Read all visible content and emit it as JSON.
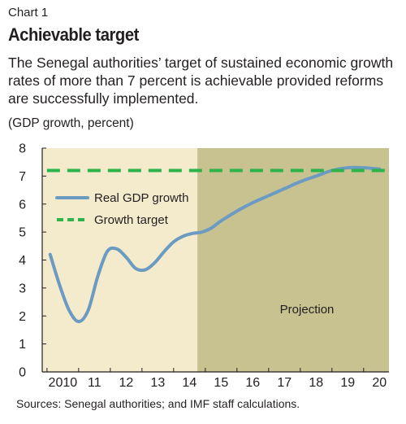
{
  "chart_data": {
    "type": "line",
    "label": "Chart 1",
    "title": "Achievable target",
    "subtitle": "The Senegal authorities’ target of sustained economic growth rates of more than 7 percent is achievable provided reforms are successfully implemented.",
    "units": "(GDP growth, percent)",
    "xlabel": "",
    "ylabel": "",
    "x_ticks": [
      "2010",
      "11",
      "12",
      "13",
      "14",
      "15",
      "16",
      "17",
      "18",
      "19",
      "20"
    ],
    "x_range": [
      2009.35,
      2020.3
    ],
    "y_ticks": [
      "0",
      "1",
      "2",
      "3",
      "4",
      "5",
      "6",
      "7",
      "8"
    ],
    "ylim": [
      0,
      8
    ],
    "grid": false,
    "legend_position": "top-left",
    "projection_start": 2014.25,
    "annotation": "Projection",
    "series": [
      {
        "name": "Real GDP growth",
        "style": "solid",
        "color": "#6b9bc3",
        "x": [
          2009.6,
          2009.9,
          2010.2,
          2010.5,
          2010.8,
          2011.1,
          2011.4,
          2011.7,
          2012.0,
          2012.3,
          2012.6,
          2012.9,
          2013.2,
          2013.5,
          2013.8,
          2014.1,
          2014.4,
          2014.7,
          2015.0,
          2015.5,
          2016.0,
          2016.5,
          2017.0,
          2017.5,
          2018.0,
          2018.5,
          2019.0,
          2019.5,
          2020.0
        ],
        "values": [
          4.2,
          3.1,
          2.2,
          1.8,
          2.2,
          3.4,
          4.3,
          4.4,
          4.1,
          3.7,
          3.65,
          3.9,
          4.3,
          4.65,
          4.85,
          4.95,
          5.0,
          5.15,
          5.4,
          5.75,
          6.05,
          6.3,
          6.55,
          6.8,
          7.0,
          7.2,
          7.3,
          7.3,
          7.25
        ]
      },
      {
        "name": "Growth target",
        "style": "dashed",
        "color": "#2db34a",
        "x": [
          2009.5,
          2020.2
        ],
        "values": [
          7.2,
          7.2
        ]
      }
    ],
    "colors": {
      "history_bg": "#f3ebcc",
      "projection_bg": "#c7c290",
      "axis": "#231f20"
    },
    "source": "Sources: Senegal authorities; and IMF staff calculations."
  }
}
